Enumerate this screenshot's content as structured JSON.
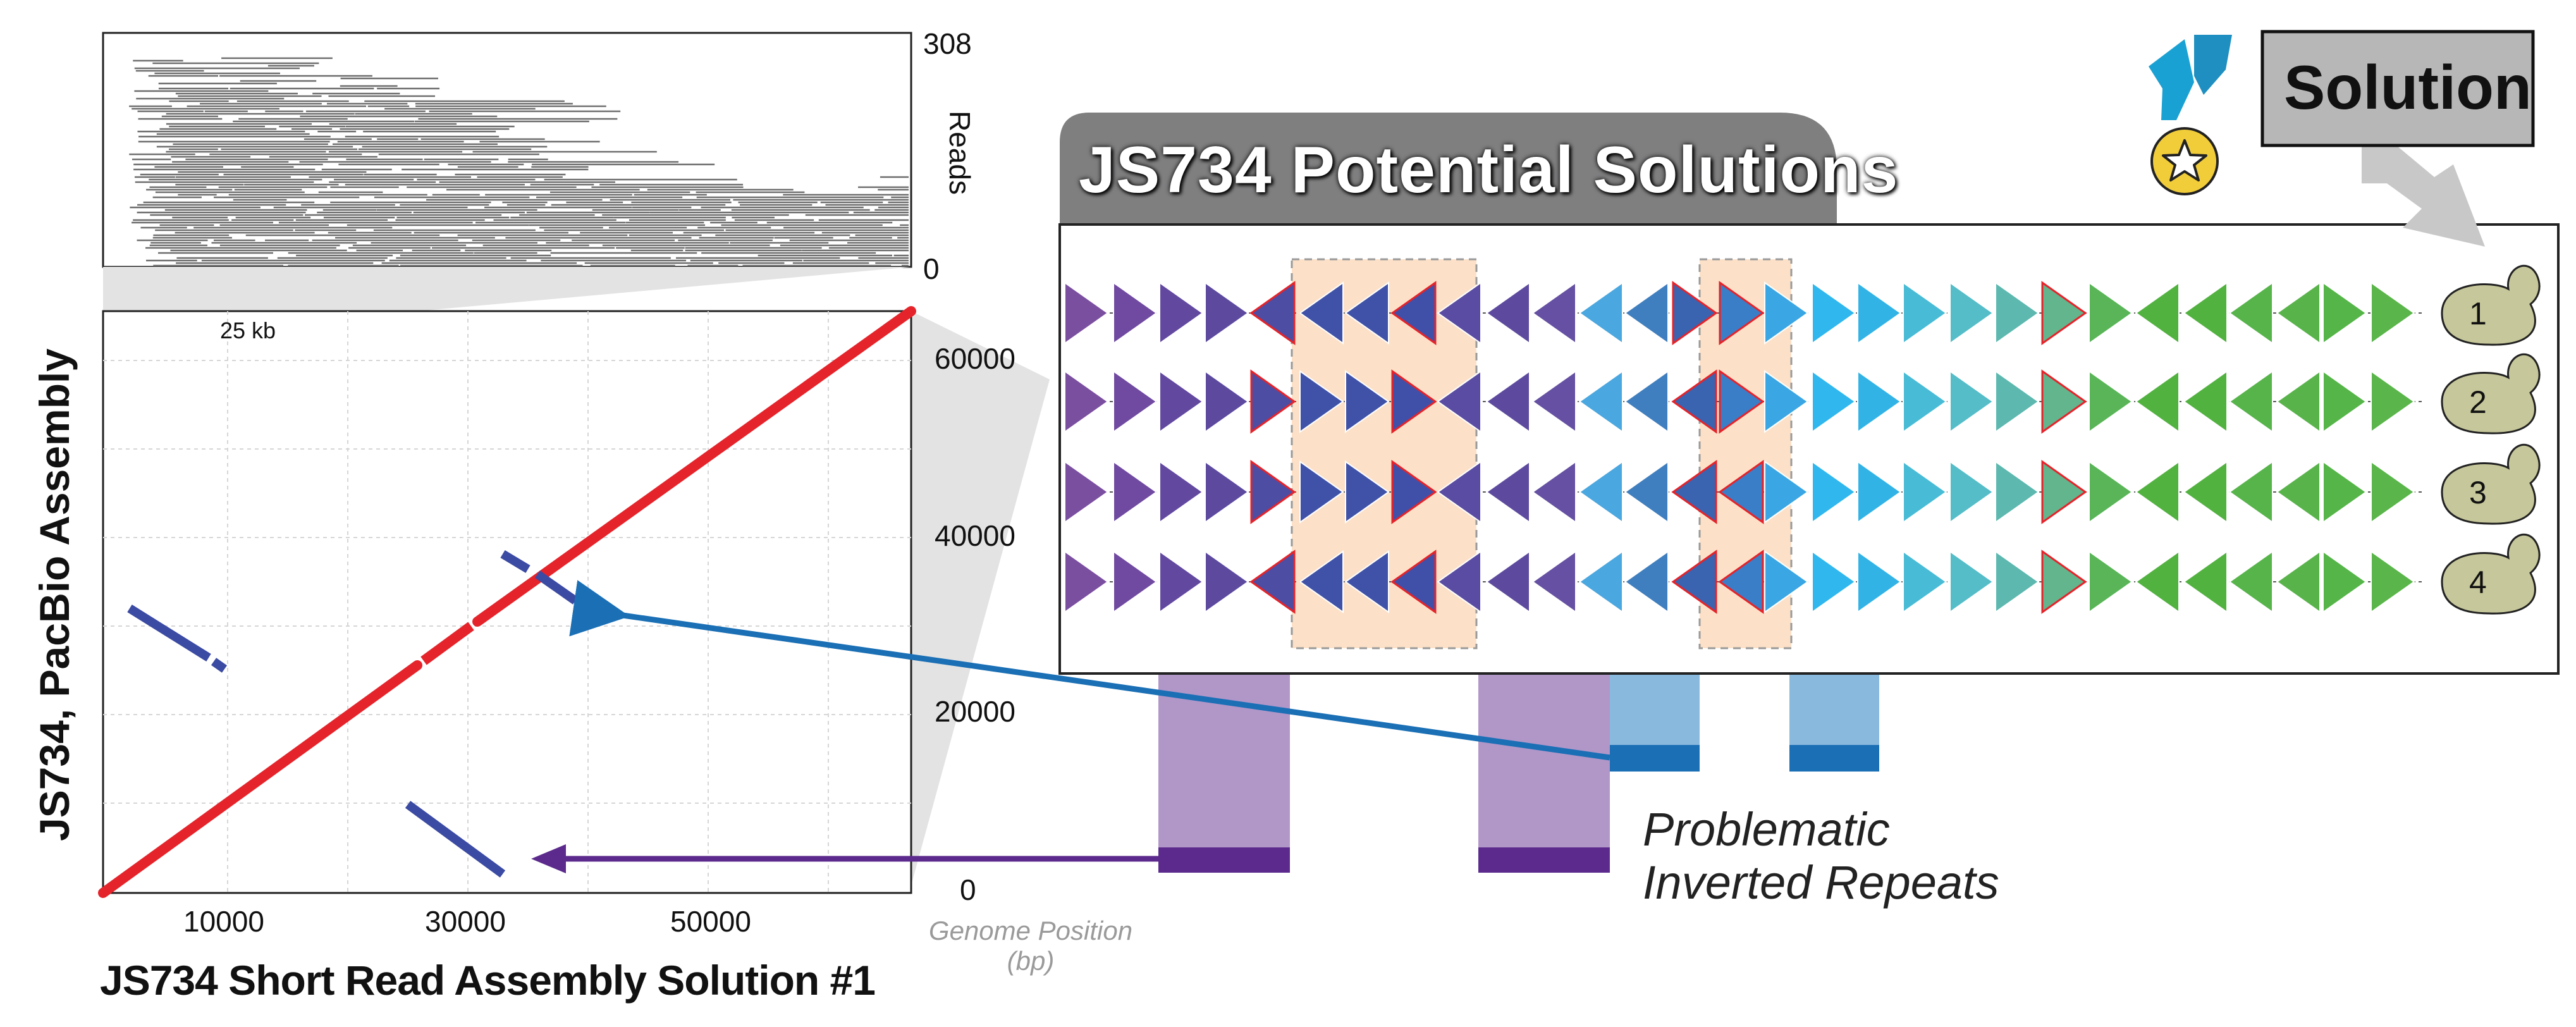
{
  "read_coverage": {
    "y_max_label": "308",
    "y_min_label": "0",
    "y_axis_label": "Reads",
    "scale_bar_label": "25 kb"
  },
  "dotplot": {
    "x_label": "JS734 Short Read Assembly Solution #1",
    "y_label": "JS734, PacBio Assembly",
    "x_tick_labels": [
      "10000",
      "30000",
      "50000"
    ],
    "y_tick_labels": [
      "60000",
      "40000",
      "20000",
      "0"
    ],
    "genome_position_label": [
      "Genome Position",
      "(bp)"
    ]
  },
  "solutions_panel": {
    "title": "JS734 Potential Solutions",
    "row_labels": [
      "1",
      "2",
      "3",
      "4"
    ]
  },
  "solution_badge": {
    "label": "Solution"
  },
  "annotation": {
    "lines": [
      "Problematic",
      "Inverted Repeats"
    ]
  },
  "colors": {
    "diagonal": "#e5232a",
    "inverted": "#3b4aa3",
    "blue_arrow": "#1a6fb5",
    "purple_arrow": "#5b2a8c",
    "panel_header": "#7f7f80",
    "highlight": "#fce1c8",
    "yeast": "#c6c79a"
  }
}
